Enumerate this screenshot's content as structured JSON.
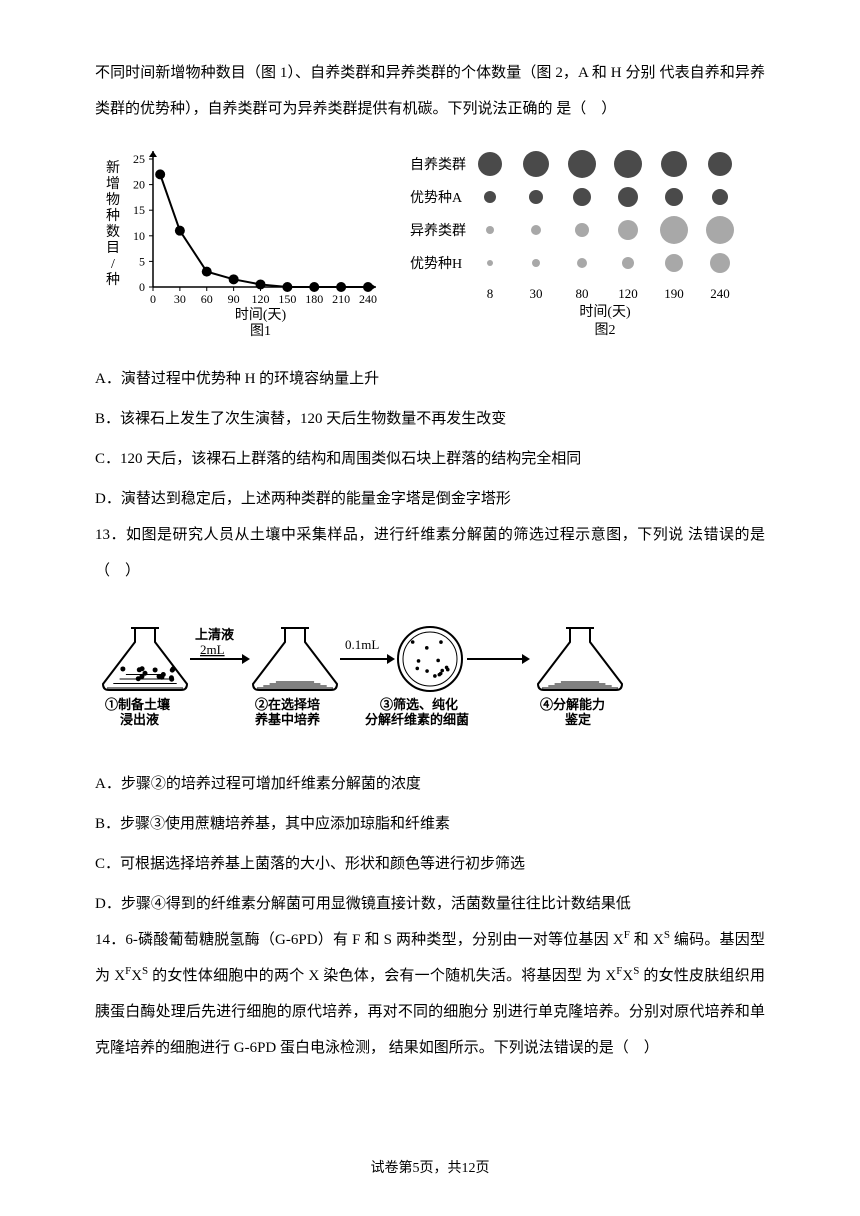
{
  "intro": {
    "line1": "不同时间新增物种数目（图 1）、自养类群和异养类群的个体数量（图 2，A 和 H 分别",
    "line2": "代表自养和异养类群的优势种），自养类群可为异养类群提供有机碳。下列说法正确的",
    "line3": "是（　）"
  },
  "fig1": {
    "xlabel": "时间(天)",
    "ylabel": "新增物种数目/种",
    "caption": "图1",
    "xticks": [
      0,
      30,
      60,
      90,
      120,
      150,
      180,
      210,
      240
    ],
    "yticks": [
      0,
      5,
      10,
      15,
      20,
      25
    ],
    "points": [
      {
        "x": 8,
        "y": 22
      },
      {
        "x": 30,
        "y": 11
      },
      {
        "x": 60,
        "y": 3
      },
      {
        "x": 90,
        "y": 1.5
      },
      {
        "x": 120,
        "y": 0.5
      },
      {
        "x": 150,
        "y": 0
      },
      {
        "x": 180,
        "y": 0
      },
      {
        "x": 210,
        "y": 0
      },
      {
        "x": 240,
        "y": 0
      }
    ],
    "line_color": "#000000",
    "marker_size": 5,
    "background": "#ffffff"
  },
  "fig2": {
    "caption": "图2",
    "xlabel": "时间(天)",
    "row_labels": [
      "自养类群",
      "优势种A",
      "异养类群",
      "优势种H"
    ],
    "xticks": [
      "8",
      "30",
      "80",
      "120",
      "190",
      "240"
    ],
    "rows": [
      {
        "color": "#4a4a4a",
        "radii": [
          12,
          13,
          14,
          14,
          13,
          12
        ]
      },
      {
        "color": "#4a4a4a",
        "radii": [
          6,
          7,
          9,
          10,
          9,
          8
        ]
      },
      {
        "color": "#a8a8a8",
        "radii": [
          4,
          5,
          7,
          10,
          14,
          14
        ]
      },
      {
        "color": "#a8a8a8",
        "radii": [
          3,
          4,
          5,
          6,
          9,
          10
        ]
      }
    ],
    "col_spacing": 46,
    "row_spacing": 33
  },
  "q12_options": {
    "a": "A．演替过程中优势种 H 的环境容纳量上升",
    "b": "B．该裸石上发生了次生演替，120 天后生物数量不再发生改变",
    "c": "C．120 天后，该裸石上群落的结构和周围类似石块上群落的结构完全相同",
    "d": "D．演替达到稳定后，上述两种类群的能量金字塔是倒金字塔形"
  },
  "q13": {
    "stem1": "13．如图是研究人员从土壤中采集样品，进行纤维素分解菌的筛选过程示意图，下列说",
    "stem2": "法错误的是（　）",
    "labels": {
      "flask1_top": "上清液",
      "flask1_vol": "2mL",
      "step1a": "①制备土壤",
      "step1b": "浸出液",
      "step2a": "②在选择培",
      "step2b": "养基中培养",
      "vol2": "0.1mL",
      "step3a": "③筛选、纯化",
      "step3b": "分解纤维素的细菌",
      "step4a": "④分解能力",
      "step4b": "鉴定"
    },
    "options": {
      "a": "A．步骤②的培养过程可增加纤维素分解菌的浓度",
      "b": "B．步骤③使用蔗糖培养基，其中应添加琼脂和纤维素",
      "c": "C．可根据选择培养基上菌落的大小、形状和颜色等进行初步筛选",
      "d": "D．步骤④得到的纤维素分解菌可用显微镜直接计数，活菌数量往往比计数结果低"
    }
  },
  "q14": {
    "line1_a": "14．6-磷酸葡萄糖脱氢酶（G-6PD）有 F 和 S 两种类型，分别由一对等位基因 X",
    "line1_f": "F",
    "line1_b": " 和 X",
    "line1_s": "S",
    "line2_a": "编码。基因型为 X",
    "line2_f": "F",
    "line2_b": "X",
    "line2_s": "S",
    "line2_c": " 的女性体细胞中的两个 X 染色体，会有一个随机失活。将基因型",
    "line3_a": "为 X",
    "line3_f": "F",
    "line3_b": "X",
    "line3_s": "S",
    "line3_c": " 的女性皮肤组织用胰蛋白酶处理后先进行细胞的原代培养，再对不同的细胞分",
    "line4": "别进行单克隆培养。分别对原代培养和单克隆培养的细胞进行 G-6PD 蛋白电泳检测，",
    "line5": "结果如图所示。下列说法错误的是（　）"
  },
  "footer": "试卷第5页，共12页"
}
